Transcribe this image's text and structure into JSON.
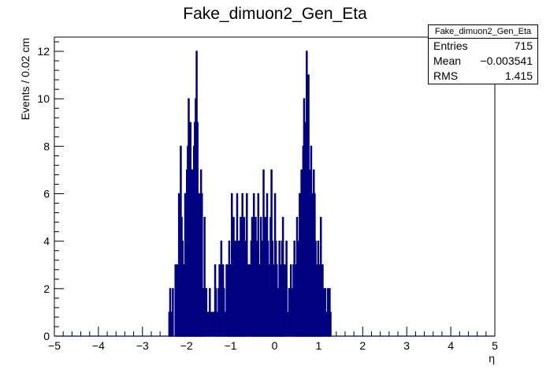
{
  "chart_data": {
    "type": "histogram",
    "title": "Fake_dimuon2_Gen_Eta",
    "xlabel": "η",
    "ylabel": "Events / 0.02 cm",
    "xlim": [
      -5,
      5
    ],
    "ylim": [
      0,
      12.6
    ],
    "x_ticks": [
      -5,
      -4,
      -3,
      -2,
      -1,
      0,
      1,
      2,
      3,
      4,
      5
    ],
    "y_ticks": [
      0,
      2,
      4,
      6,
      8,
      10,
      12
    ],
    "bin_width": 0.02,
    "bin_start": -2.4,
    "counts": [
      1,
      2,
      0,
      1,
      2,
      0,
      0,
      3,
      2,
      3,
      3,
      6,
      2,
      8,
      5,
      4,
      3,
      2,
      6,
      6,
      7,
      8,
      10,
      6,
      9,
      4,
      7,
      7,
      8,
      9,
      10,
      12,
      9,
      5,
      6,
      5,
      7,
      6,
      2,
      1,
      5,
      2,
      2,
      0,
      1,
      1,
      2,
      0,
      1,
      0,
      1,
      0,
      3,
      2,
      0,
      1,
      2,
      3,
      1,
      4,
      2,
      3,
      2,
      0,
      1,
      3,
      2,
      3,
      4,
      3,
      2,
      6,
      3,
      5,
      2,
      4,
      3,
      6,
      2,
      4,
      3,
      5,
      5,
      6,
      3,
      5,
      4,
      2,
      6,
      2,
      3,
      0,
      3,
      4,
      5,
      4,
      6,
      3,
      5,
      4,
      2,
      6,
      1,
      3,
      5,
      4,
      3,
      7,
      2,
      5,
      3,
      6,
      4,
      2,
      3,
      5,
      7,
      4,
      3,
      2,
      6,
      4,
      3,
      1,
      2,
      4,
      3,
      2,
      4,
      5,
      2,
      3,
      1,
      4,
      0,
      1,
      2,
      0,
      3,
      1,
      2,
      3,
      4,
      2,
      3,
      5,
      4,
      2,
      6,
      5,
      7,
      6,
      8,
      10,
      9,
      8,
      12,
      8,
      11,
      7,
      6,
      8,
      5,
      6,
      7,
      6,
      4,
      3,
      3,
      4,
      3,
      2,
      5,
      3,
      3,
      2,
      1,
      2,
      1,
      0,
      2,
      1,
      2,
      1
    ]
  },
  "stats_box": {
    "title": "Fake_dimuon2_Gen_Eta",
    "entries_label": "Entries",
    "entries_value": "715",
    "mean_label": "Mean",
    "mean_value": "−0.003541",
    "rms_label": "RMS",
    "rms_value": "1.415"
  },
  "colors": {
    "line": "#000080",
    "axis": "#000000"
  }
}
